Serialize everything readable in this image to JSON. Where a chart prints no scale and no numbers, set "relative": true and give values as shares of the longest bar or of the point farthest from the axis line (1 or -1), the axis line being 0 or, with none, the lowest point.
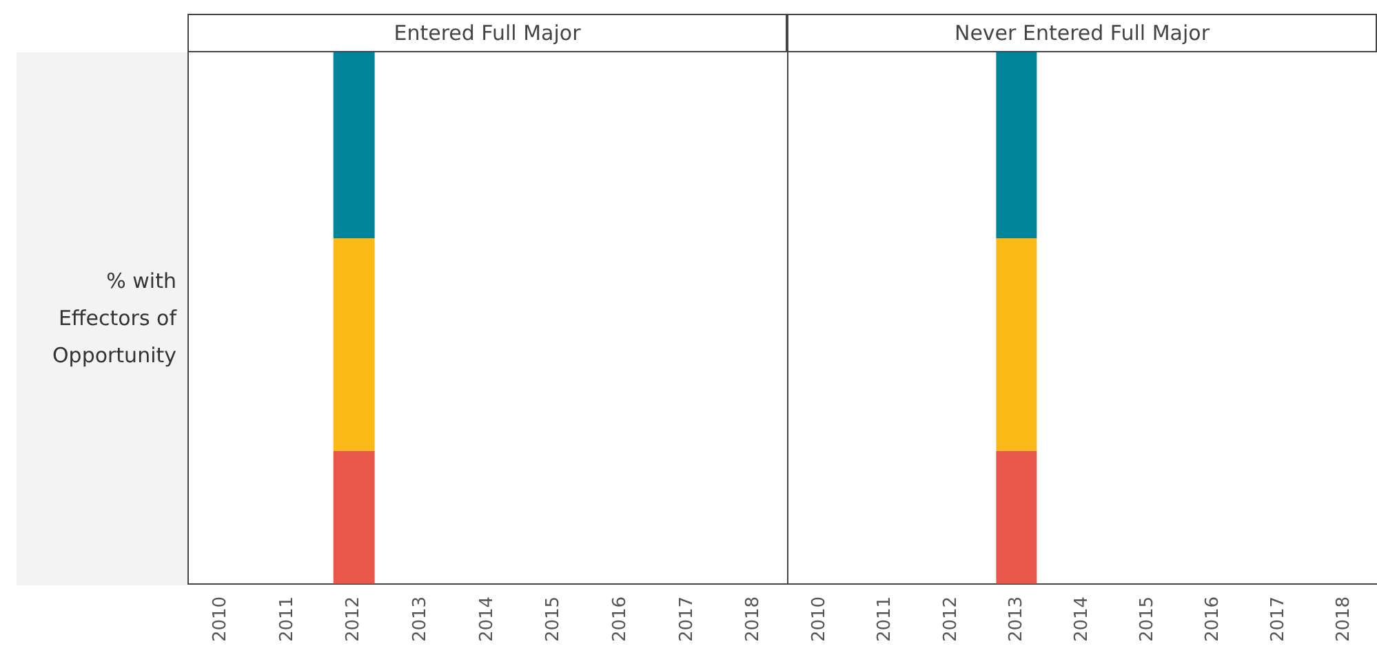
{
  "chart_data": [
    {
      "type": "bar",
      "title": "Entered Full Major",
      "ylabel": "% with Effectors of Opportunity",
      "categories": [
        "2010",
        "2011",
        "2012",
        "2013",
        "2014",
        "2015",
        "2016",
        "2017",
        "2018"
      ],
      "stacked": true,
      "relative": true,
      "grid": false,
      "legend": false,
      "series": [
        {
          "color": "#e8574a",
          "values": [
            null,
            null,
            0.25,
            null,
            null,
            null,
            null,
            null,
            null
          ]
        },
        {
          "color": "#fbb917",
          "values": [
            null,
            null,
            0.4,
            null,
            null,
            null,
            null,
            null,
            null
          ]
        },
        {
          "color": "#00849a",
          "values": [
            null,
            null,
            0.35,
            null,
            null,
            null,
            null,
            null,
            null
          ]
        }
      ]
    },
    {
      "type": "bar",
      "title": "Never Entered Full Major",
      "categories": [
        "2010",
        "2011",
        "2012",
        "2013",
        "2014",
        "2015",
        "2016",
        "2017",
        "2018"
      ],
      "stacked": true,
      "relative": true,
      "grid": false,
      "legend": false,
      "series": [
        {
          "color": "#e8574a",
          "values": [
            null,
            null,
            null,
            0.25,
            null,
            null,
            null,
            null,
            null
          ]
        },
        {
          "color": "#fbb917",
          "values": [
            null,
            null,
            null,
            0.4,
            null,
            null,
            null,
            null,
            null
          ]
        },
        {
          "color": "#00849a",
          "values": [
            null,
            null,
            null,
            0.35,
            null,
            null,
            null,
            null,
            null
          ]
        }
      ]
    }
  ]
}
